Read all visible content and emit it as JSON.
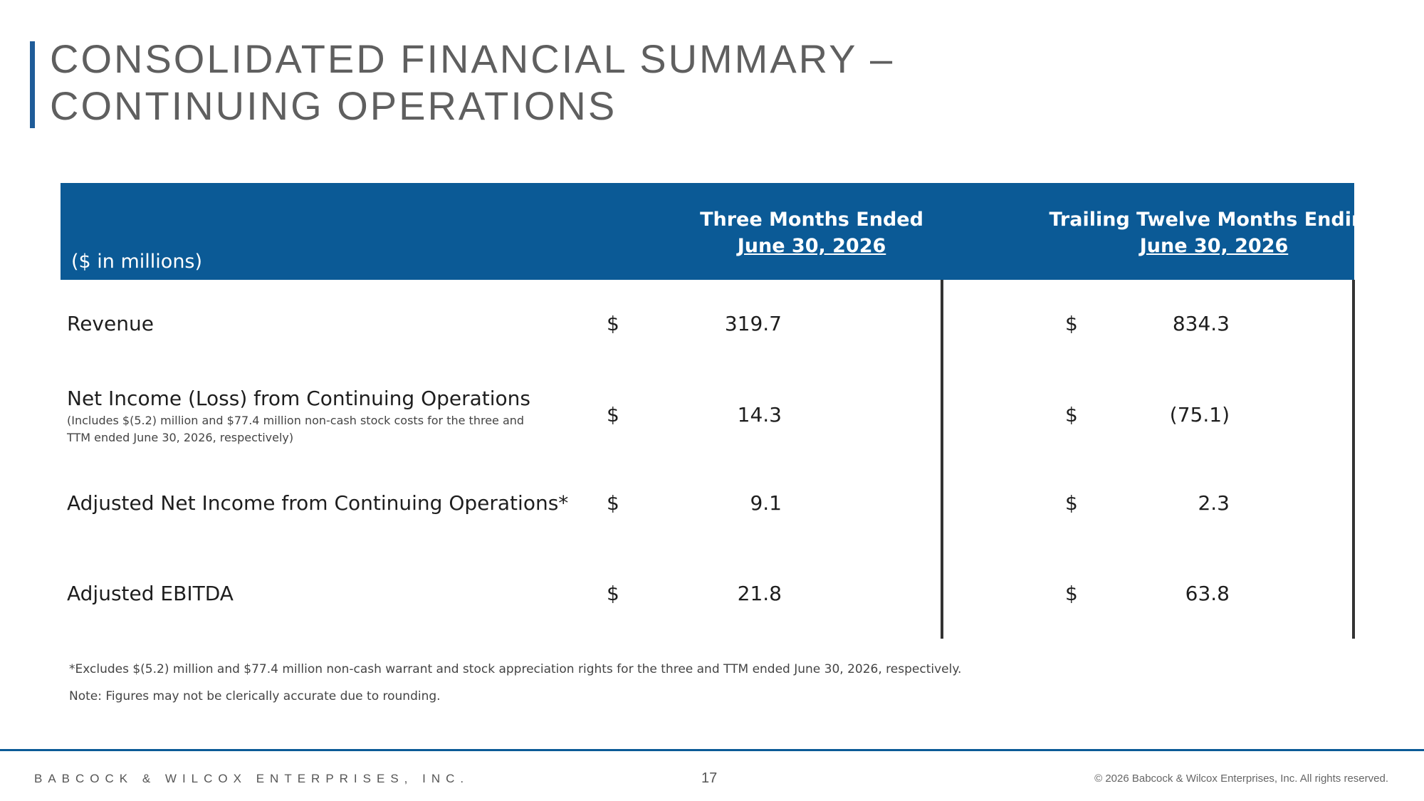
{
  "title": {
    "line1": "CONSOLIDATED FINANCIAL SUMMARY –",
    "line2": "CONTINUING OPERATIONS"
  },
  "table": {
    "units_label": "($ in millions)",
    "columns": [
      {
        "heading": "Three Months Ended",
        "subheading": "June 30, 2026"
      },
      {
        "heading": "Trailing Twelve Months Ending",
        "subheading": "June 30, 2026"
      }
    ],
    "currency_symbol": "$",
    "rows": [
      {
        "label": "Revenue",
        "note": "",
        "three_months": "319.7",
        "ttm": "834.3"
      },
      {
        "label": "Net Income (Loss) from Continuing Operations",
        "note": "(Includes $(5.2) million and $77.4 million non-cash stock costs for the three and TTM ended June 30, 2026, respectively)",
        "three_months": "14.3",
        "ttm": "(75.1)"
      },
      {
        "label": "Adjusted Net Income from Continuing Operations*",
        "note": "",
        "three_months": "9.1",
        "ttm": "2.3"
      },
      {
        "label": "Adjusted EBITDA",
        "note": "",
        "three_months": "21.8",
        "ttm": "63.8"
      }
    ]
  },
  "footnotes": {
    "asterisk": "*Excludes $(5.2) million and $77.4 million non-cash warrant and stock appreciation rights for the three and TTM ended June 30, 2026, respectively.",
    "rounding": "Note: Figures may not be clerically accurate due to rounding."
  },
  "footer": {
    "company": "BABCOCK & WILCOX ENTERPRISES, INC.",
    "page_number": "17",
    "copyright": "© 2026 Babcock & Wilcox Enterprises, Inc. All rights reserved."
  },
  "colors": {
    "brand_blue": "#0b5a96",
    "title_gray": "#5f5f5f"
  }
}
